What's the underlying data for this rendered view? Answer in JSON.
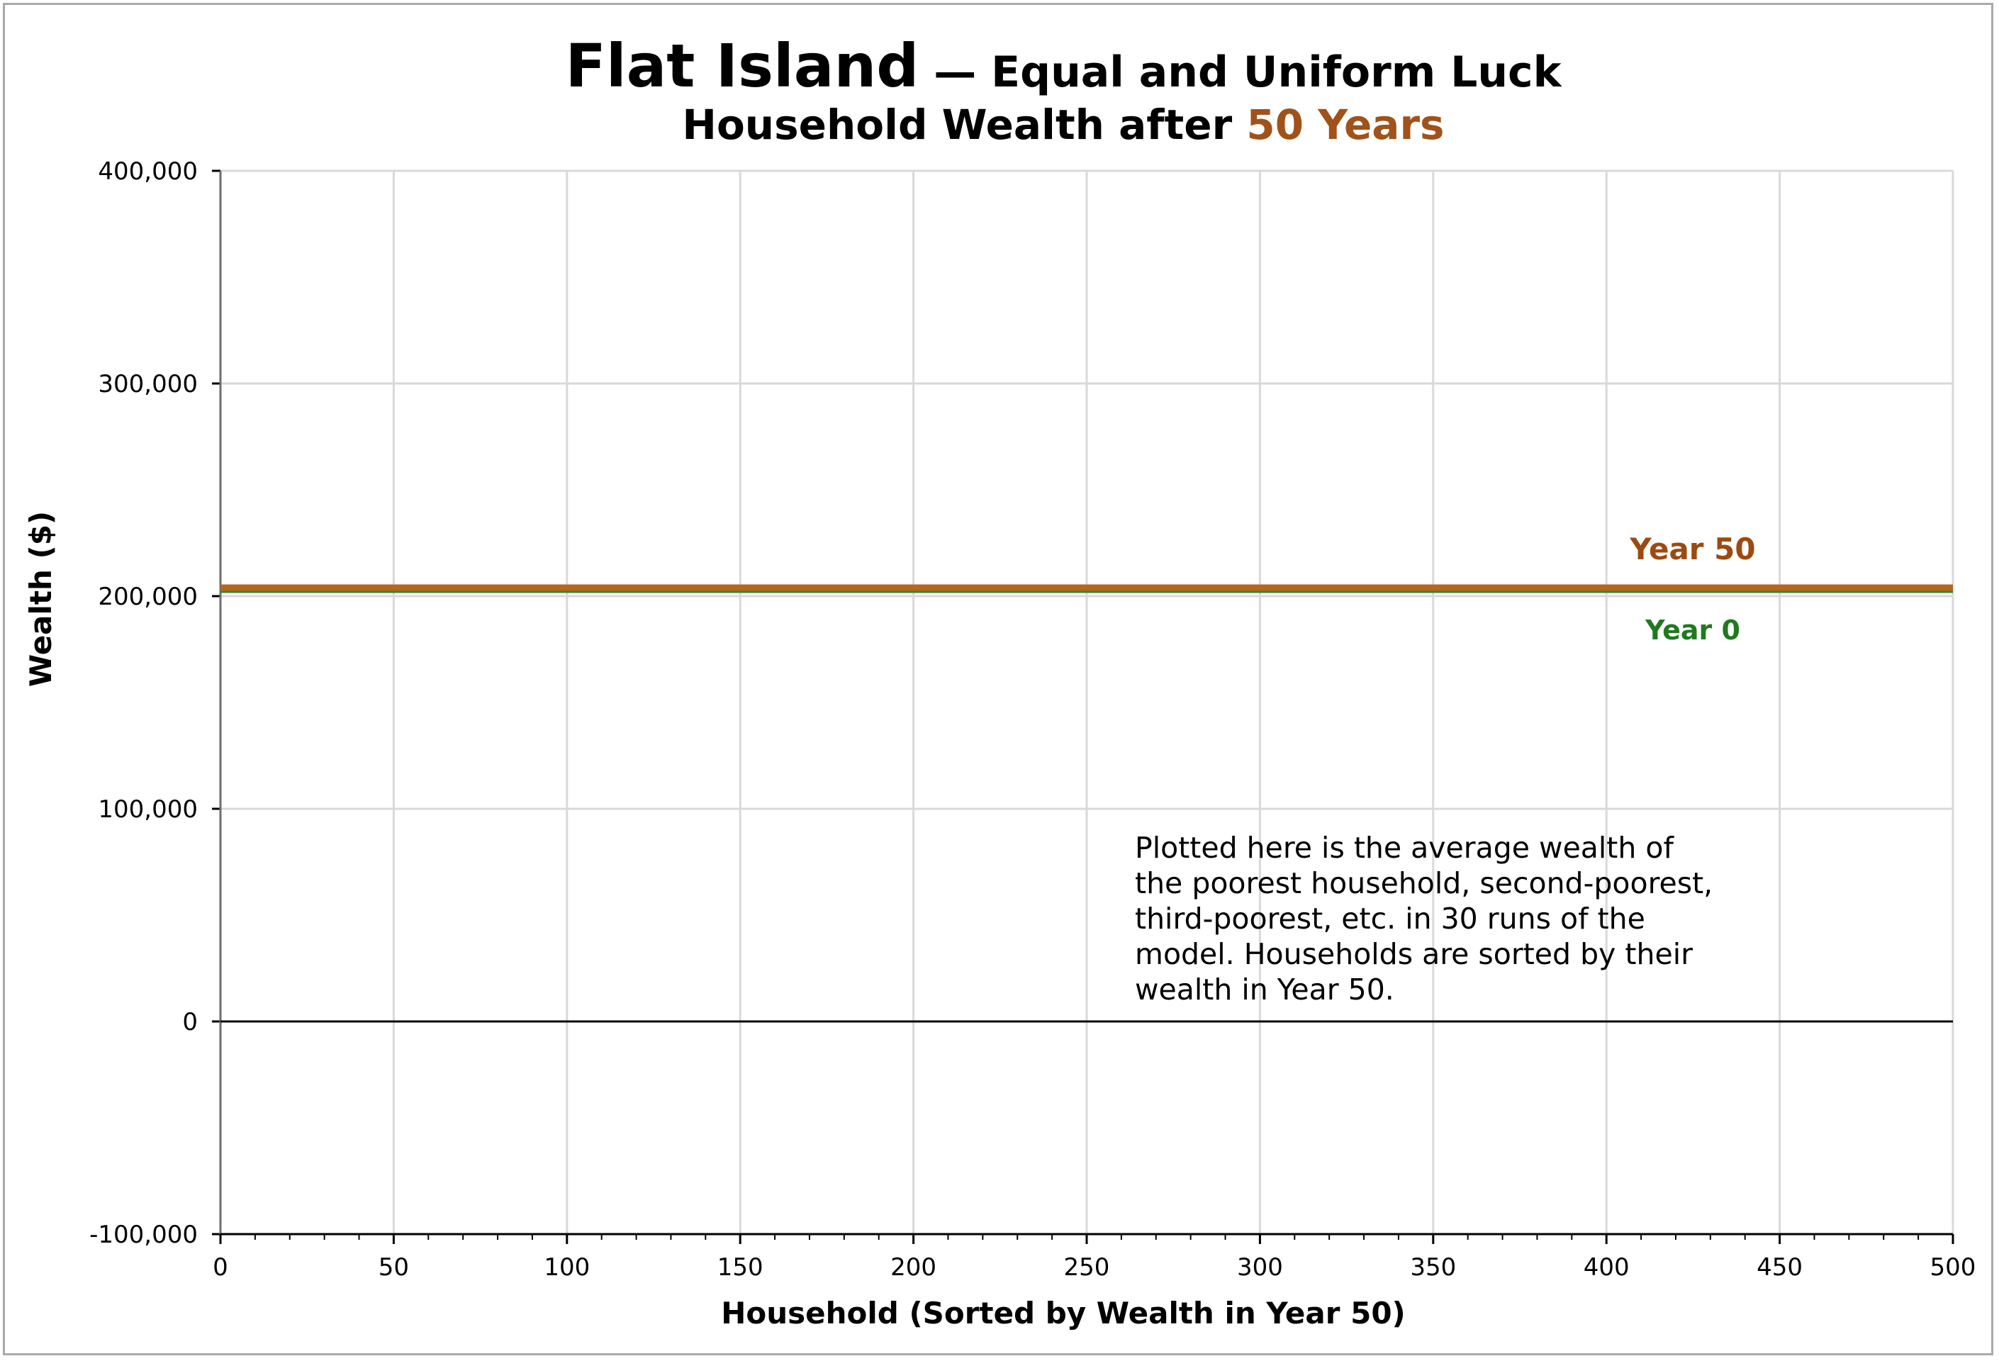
{
  "colors": {
    "accent": "#a0521a",
    "year50_line": "#b8651f",
    "year0_line": "#2f8a2f",
    "year50_label": "#9c4a12",
    "year0_label": "#1f7a1f",
    "negative_tick": "#e0201c",
    "grid": "#d9d9d9",
    "zero_line": "#000000"
  },
  "chart_data": {
    "type": "line",
    "title": "Flat Island",
    "title_suffix": " — Equal and Uniform Luck",
    "subtitle_prefix": "Household Wealth after ",
    "subtitle_highlight": "50 Years",
    "xlabel": "Household (Sorted by Wealth in Year 50)",
    "ylabel": "Wealth ($)",
    "xlim": [
      0,
      500
    ],
    "ylim": [
      -100000,
      400000
    ],
    "x_ticks": [
      "0",
      "50",
      "100",
      "150",
      "200",
      "250",
      "300",
      "350",
      "400",
      "450",
      "500"
    ],
    "y_ticks": [
      "400,000",
      "300,000",
      "200,000",
      "100,000",
      "0",
      "-100,000"
    ],
    "grid": true,
    "series": [
      {
        "name": "Year 50",
        "color": "#b8651f",
        "x": [
          0,
          500
        ],
        "y": [
          204000,
          204000
        ]
      },
      {
        "name": "Year 0",
        "color": "#2f8a2f",
        "x": [
          0,
          500
        ],
        "y": [
          203000,
          203000
        ]
      }
    ],
    "annotations": [
      "Plotted here is the average wealth of",
      "the poorest household, second-poorest,",
      "third-poorest, etc. in 30 runs of the",
      "model. Households are sorted by their",
      "wealth in Year 50."
    ]
  }
}
